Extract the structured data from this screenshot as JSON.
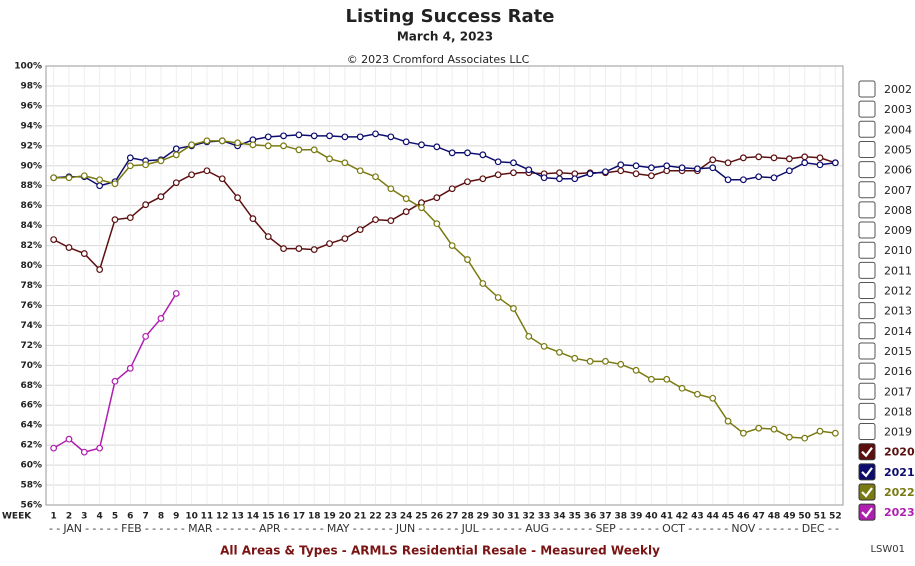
{
  "chart_data": {
    "type": "line",
    "title": "Listing Success Rate",
    "subtitle": "March 4, 2023",
    "copyright": "© 2023 Cromford Associates LLC",
    "x_axis_label": "WEEK",
    "months_row": "- - JAN - - - - - FEB - - - - - - MAR - - - - - - APR - - - - - - MAY - - - - - - JUN - - - - - - JUL - - - - - - AUG - - - - - - SEP - - - - - - OCT - - - - - - NOV - - - - - - DEC - -",
    "footer": "All Areas & Types - ARMLS Residential Resale - Measured Weekly",
    "chart_code": "LSW01",
    "x": [
      1,
      2,
      3,
      4,
      5,
      6,
      7,
      8,
      9,
      10,
      11,
      12,
      13,
      14,
      15,
      16,
      17,
      18,
      19,
      20,
      21,
      22,
      23,
      24,
      25,
      26,
      27,
      28,
      29,
      30,
      31,
      32,
      33,
      34,
      35,
      36,
      37,
      38,
      39,
      40,
      41,
      42,
      43,
      44,
      45,
      46,
      47,
      48,
      49,
      50,
      51,
      52
    ],
    "xlim": [
      0.5,
      52.5
    ],
    "xticks": [
      1,
      2,
      3,
      4,
      5,
      6,
      7,
      8,
      9,
      10,
      11,
      12,
      13,
      14,
      15,
      16,
      17,
      18,
      19,
      20,
      21,
      22,
      23,
      24,
      25,
      26,
      27,
      28,
      29,
      30,
      31,
      32,
      33,
      34,
      35,
      36,
      37,
      38,
      39,
      40,
      41,
      42,
      43,
      44,
      45,
      46,
      47,
      48,
      49,
      50,
      51,
      52
    ],
    "ylim": [
      56,
      100
    ],
    "yticks": [
      {
        "value": 56,
        "label": "56%"
      },
      {
        "value": 58,
        "label": "58%"
      },
      {
        "value": 60,
        "label": "60%"
      },
      {
        "value": 62,
        "label": "62%"
      },
      {
        "value": 64,
        "label": "64%"
      },
      {
        "value": 66,
        "label": "66%"
      },
      {
        "value": 68,
        "label": "68%"
      },
      {
        "value": 70,
        "label": "70%"
      },
      {
        "value": 72,
        "label": "72%"
      },
      {
        "value": 74,
        "label": "74%"
      },
      {
        "value": 76,
        "label": "76%"
      },
      {
        "value": 78,
        "label": "78%"
      },
      {
        "value": 80,
        "label": "80%"
      },
      {
        "value": 82,
        "label": "82%"
      },
      {
        "value": 84,
        "label": "84%"
      },
      {
        "value": 86,
        "label": "86%"
      },
      {
        "value": 88,
        "label": "88%"
      },
      {
        "value": 90,
        "label": "90%"
      },
      {
        "value": 92,
        "label": "92%"
      },
      {
        "value": 94,
        "label": "94%"
      },
      {
        "value": 96,
        "label": "96%"
      },
      {
        "value": 98,
        "label": "98%"
      },
      {
        "value": 100,
        "label": "100%"
      }
    ],
    "grid": true,
    "legend_position": "right",
    "unchecked_years": [
      "2002",
      "2003",
      "2004",
      "2005",
      "2006",
      "2007",
      "2008",
      "2009",
      "2010",
      "2011",
      "2012",
      "2013",
      "2014",
      "2015",
      "2016",
      "2017",
      "2018",
      "2019"
    ],
    "series": [
      {
        "name": "2020",
        "color": "#5c0f0f",
        "values": [
          82.6,
          81.8,
          81.2,
          79.6,
          84.6,
          84.8,
          86.1,
          86.9,
          88.3,
          89.1,
          89.5,
          88.7,
          86.8,
          84.7,
          82.9,
          81.7,
          81.7,
          81.6,
          82.2,
          82.7,
          83.6,
          84.6,
          84.5,
          85.4,
          86.3,
          86.8,
          87.7,
          88.4,
          88.7,
          89.1,
          89.3,
          89.3,
          89.2,
          89.3,
          89.2,
          89.3,
          89.3,
          89.5,
          89.2,
          89.0,
          89.5,
          89.5,
          89.5,
          90.6,
          90.3,
          90.8,
          90.9,
          90.8,
          90.7,
          90.9,
          90.8,
          90.3
        ]
      },
      {
        "name": "2021",
        "color": "#0c0c6e",
        "values": [
          88.8,
          88.9,
          88.9,
          88.0,
          88.4,
          90.8,
          90.5,
          90.6,
          91.7,
          92.0,
          92.4,
          92.5,
          92.0,
          92.6,
          92.9,
          93.0,
          93.1,
          93.0,
          93.0,
          92.9,
          92.9,
          93.2,
          92.9,
          92.4,
          92.1,
          91.9,
          91.3,
          91.3,
          91.1,
          90.4,
          90.3,
          89.6,
          88.8,
          88.7,
          88.7,
          89.2,
          89.4,
          90.1,
          90.0,
          89.8,
          90.0,
          89.8,
          89.7,
          89.8,
          88.6,
          88.6,
          88.9,
          88.8,
          89.5,
          90.3,
          90.1,
          90.3
        ]
      },
      {
        "name": "2022",
        "color": "#7a7a12",
        "values": [
          88.8,
          88.8,
          89.0,
          88.6,
          88.2,
          90.0,
          90.1,
          90.5,
          91.1,
          92.1,
          92.5,
          92.5,
          92.3,
          92.1,
          92.0,
          92.0,
          91.6,
          91.6,
          90.7,
          90.3,
          89.5,
          88.9,
          87.7,
          86.7,
          85.8,
          84.2,
          82.0,
          80.6,
          78.2,
          76.8,
          75.7,
          72.9,
          71.9,
          71.3,
          70.7,
          70.4,
          70.4,
          70.1,
          69.5,
          68.6,
          68.6,
          67.7,
          67.1,
          66.7,
          64.4,
          63.2,
          63.7,
          63.6,
          62.8,
          62.7,
          63.4,
          63.2
        ]
      },
      {
        "name": "2023",
        "color": "#b01eb0",
        "values": [
          61.7,
          62.6,
          61.3,
          61.7,
          68.4,
          69.7,
          72.9,
          74.7,
          77.2,
          null,
          null,
          null,
          null,
          null,
          null,
          null,
          null,
          null,
          null,
          null,
          null,
          null,
          null,
          null,
          null,
          null,
          null,
          null,
          null,
          null,
          null,
          null,
          null,
          null,
          null,
          null,
          null,
          null,
          null,
          null,
          null,
          null,
          null,
          null,
          null,
          null,
          null,
          null,
          null,
          null,
          null,
          null
        ]
      }
    ]
  }
}
